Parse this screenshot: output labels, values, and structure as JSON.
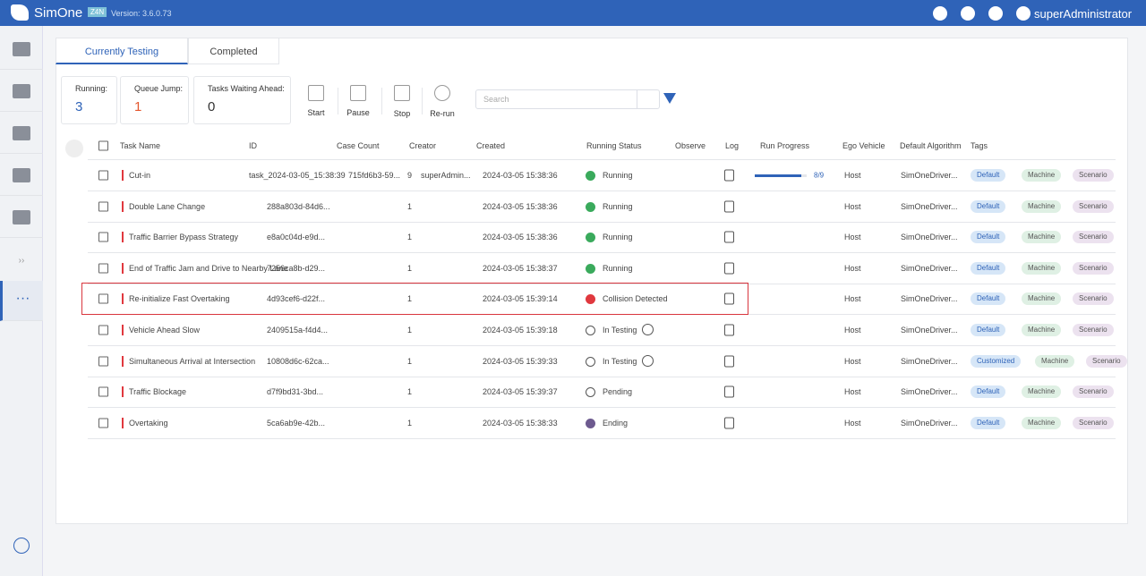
{
  "header": {
    "brand": "SimOne",
    "badge": "Z4N",
    "version": "Version: 3.6.0.73",
    "user": "superAdministrator"
  },
  "tabs": [
    "Currently Testing",
    "Completed"
  ],
  "stats": [
    {
      "label": "Running:",
      "value": "3"
    },
    {
      "label": "Queue Jump:",
      "value": "1"
    },
    {
      "label": "Tasks Waiting Ahead:",
      "value": "0"
    }
  ],
  "actions": [
    "Start",
    "Pause",
    "Stop",
    "Re-run"
  ],
  "search_placeholder": "Search",
  "table": {
    "columns": [
      "Task Name",
      "ID",
      "Case Count",
      "Creator",
      "Created",
      "Running Status",
      "Observe",
      "Log",
      "Run Progress",
      "Ego Vehicle",
      "Default Algorithm",
      "Tags"
    ],
    "rows": [
      {
        "name": "Cut-in",
        "batch": "task_2024-03-05_15:38:39",
        "id": "715fd6b3-59...",
        "count": "9",
        "creator": "superAdmin...",
        "created": "2024-03-05 15:38:36",
        "status": "Running",
        "progress": "8/9",
        "ego": "Host",
        "algorithm": "SimOneDriver...",
        "tags": [
          "Default",
          "Machine",
          "Scenario"
        ]
      },
      {
        "name": "Double Lane Change",
        "id": "288a803d-84d6...",
        "count": "1",
        "created": "2024-03-05 15:38:36",
        "status": "Running",
        "ego": "Host",
        "algorithm": "SimOneDriver...",
        "tags": [
          "Default",
          "Machine",
          "Scenario"
        ]
      },
      {
        "name": "Traffic Barrier Bypass Strategy",
        "id": "e8a0c04d-e9d...",
        "count": "1",
        "created": "2024-03-05 15:38:36",
        "status": "Running",
        "ego": "Host",
        "algorithm": "SimOneDriver...",
        "tags": [
          "Default",
          "Machine",
          "Scenario"
        ]
      },
      {
        "name": "End of Traffic Jam and Drive to Nearby Lane",
        "id": "7256ca8b-d29...",
        "count": "1",
        "created": "2024-03-05 15:38:37",
        "status": "Running",
        "ego": "Host",
        "algorithm": "SimOneDriver...",
        "tags": [
          "Default",
          "Machine",
          "Scenario"
        ]
      },
      {
        "name": "Re-initialize Fast Overtaking",
        "id": "4d93cef6-d22f...",
        "count": "1",
        "created": "2024-03-05 15:39:14",
        "status": "Collision Detected",
        "ego": "Host",
        "algorithm": "SimOneDriver...",
        "tags": [
          "Default",
          "Machine",
          "Scenario"
        ]
      },
      {
        "name": "Vehicle Ahead Slow",
        "id": "2409515a-f4d4...",
        "count": "1",
        "created": "2024-03-05 15:39:18",
        "status": "In Testing",
        "ego": "Host",
        "algorithm": "SimOneDriver...",
        "tags": [
          "Default",
          "Machine",
          "Scenario"
        ]
      },
      {
        "name": "Simultaneous Arrival at Intersection",
        "id": "10808d6c-62ca...",
        "count": "1",
        "created": "2024-03-05 15:39:33",
        "status": "In Testing",
        "ego": "Host",
        "algorithm": "SimOneDriver...",
        "tags": [
          "Customized",
          "Machine",
          "Scenario"
        ]
      },
      {
        "name": "Traffic Blockage",
        "id": "d7f9bd31-3bd...",
        "count": "1",
        "created": "2024-03-05 15:39:37",
        "status": "Pending",
        "ego": "Host",
        "algorithm": "SimOneDriver...",
        "tags": [
          "Default",
          "Machine",
          "Scenario"
        ]
      },
      {
        "name": "Overtaking",
        "id": "5ca6ab9e-42b...",
        "count": "1",
        "created": "2024-03-05 15:38:33",
        "status": "Ending",
        "ego": "Host",
        "algorithm": "SimOneDriver...",
        "tags": [
          "Default",
          "Machine",
          "Scenario"
        ]
      }
    ]
  }
}
